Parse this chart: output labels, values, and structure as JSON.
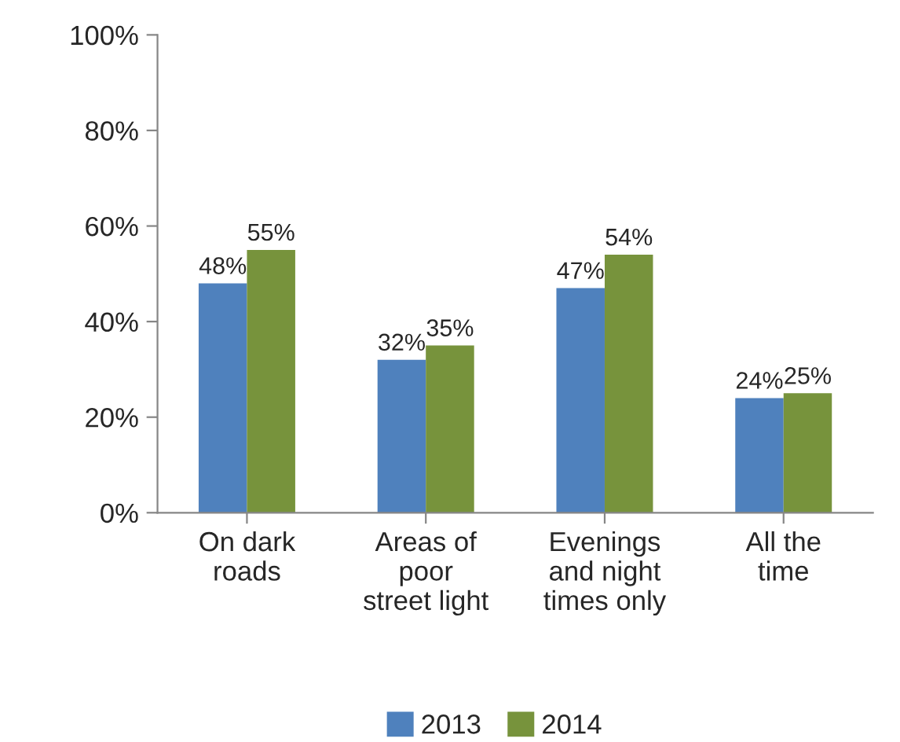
{
  "chart_data": {
    "type": "bar",
    "categories": [
      "On dark\nroads",
      "Areas of\npoor\nstreet light",
      "Evenings\nand night\ntimes only",
      "All the\ntime"
    ],
    "series": [
      {
        "name": "2013",
        "color": "#4f81bd",
        "values": [
          48,
          32,
          47,
          24
        ],
        "value_labels": [
          "48%",
          "32%",
          "47%",
          "24%"
        ]
      },
      {
        "name": "2014",
        "color": "#77933c",
        "values": [
          55,
          35,
          54,
          25
        ],
        "value_labels": [
          "55%",
          "35%",
          "54%",
          "25%"
        ]
      }
    ],
    "ylim": [
      0,
      100
    ],
    "yticks": [
      {
        "value": 0,
        "label": "0%"
      },
      {
        "value": 20,
        "label": "20%"
      },
      {
        "value": 40,
        "label": "40%"
      },
      {
        "value": 60,
        "label": "60%"
      },
      {
        "value": 80,
        "label": "80%"
      },
      {
        "value": 100,
        "label": "100%"
      }
    ],
    "grid": false,
    "legend": "bottom"
  }
}
